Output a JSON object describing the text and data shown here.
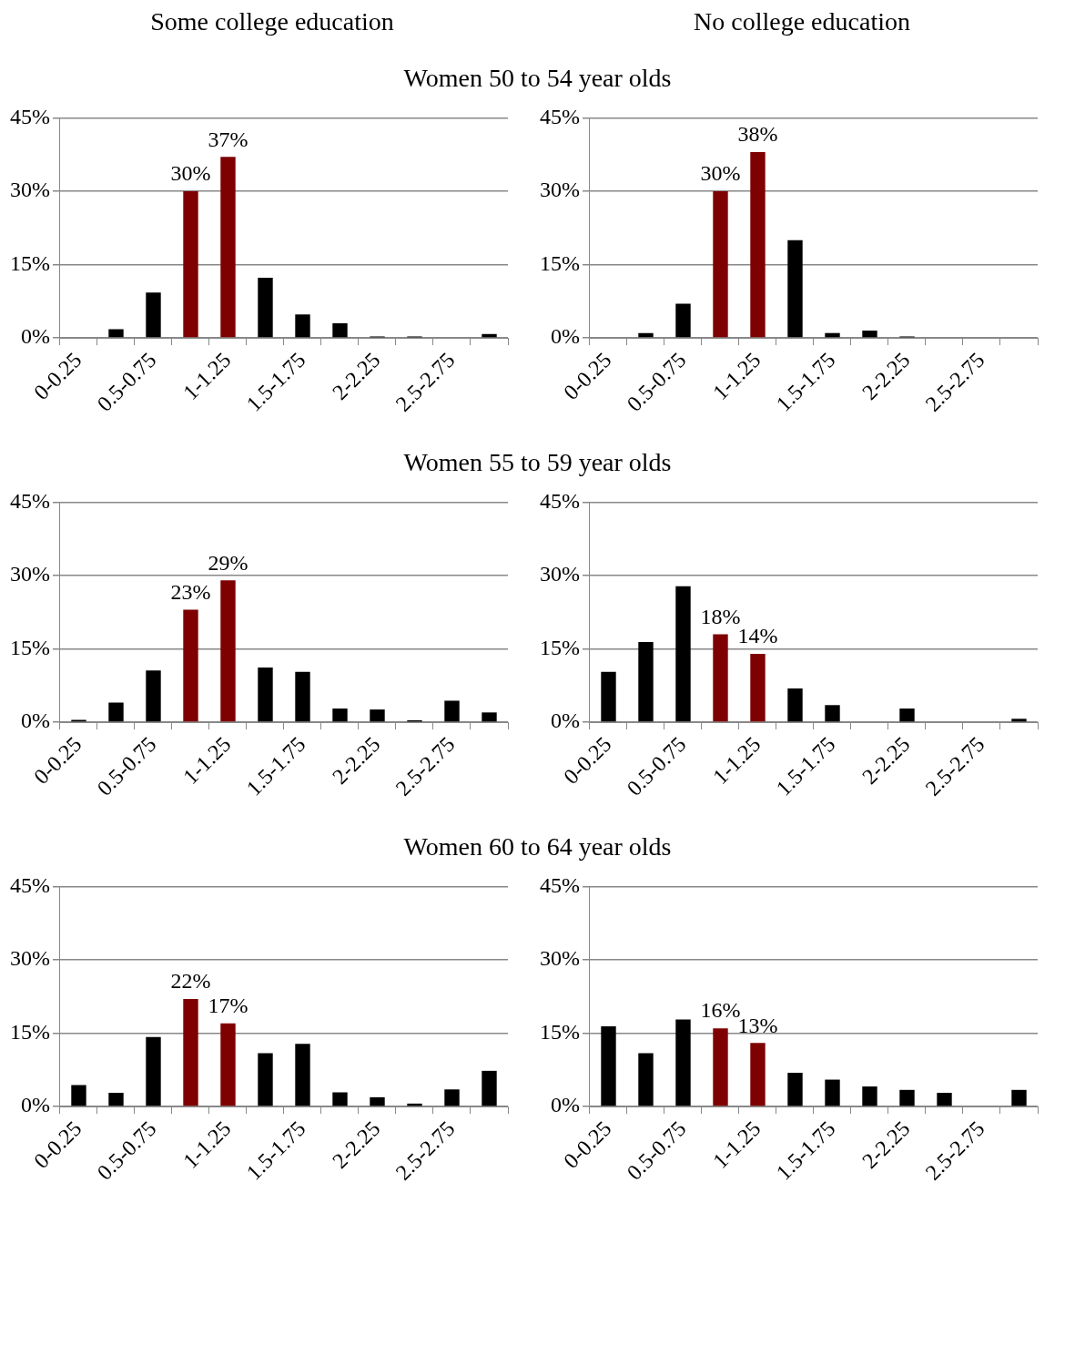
{
  "chart_data": [
    {
      "type": "bar",
      "title": "Some college education",
      "subtitle": "Women 50 to 54 year olds",
      "categories": [
        "0-0.25",
        null,
        "0.5-0.75",
        null,
        "1-1.25",
        null,
        "1.5-1.75",
        null,
        "2-2.25",
        null,
        "2.5-2.75",
        null
      ],
      "values": [
        0,
        1.8,
        9.3,
        30,
        37,
        12.3,
        4.8,
        3,
        0.3,
        0.3,
        0,
        0.8
      ],
      "colors": [
        "#000000",
        "#000000",
        "#000000",
        "#7f0000",
        "#7f0000",
        "#000000",
        "#000000",
        "#000000",
        "#000000",
        "#000000",
        "#000000",
        "#000000"
      ],
      "value_labels": [
        null,
        null,
        null,
        "30%",
        "37%",
        null,
        null,
        null,
        null,
        null,
        null,
        null
      ],
      "ylim": [
        0,
        45
      ],
      "yticks": [
        {
          "value": 0,
          "label": "0%"
        },
        {
          "value": 15,
          "label": "15%"
        },
        {
          "value": 30,
          "label": "30%"
        },
        {
          "value": 45,
          "label": "45%"
        }
      ],
      "grid": "y"
    },
    {
      "type": "bar",
      "title": "No college education",
      "categories": [
        "0-0.25",
        null,
        "0.5-0.75",
        null,
        "1-1.25",
        null,
        "1.5-1.75",
        null,
        "2-2.25",
        null,
        "2.5-2.75",
        null
      ],
      "values": [
        0,
        1,
        7,
        30,
        38,
        20,
        1,
        1.5,
        0.3,
        0,
        0,
        0
      ],
      "colors": [
        "#000000",
        "#000000",
        "#000000",
        "#7f0000",
        "#7f0000",
        "#000000",
        "#000000",
        "#000000",
        "#000000",
        "#000000",
        "#000000",
        "#000000"
      ],
      "value_labels": [
        null,
        null,
        null,
        "30%",
        "38%",
        null,
        null,
        null,
        null,
        null,
        null,
        null
      ],
      "ylim": [
        0,
        45
      ],
      "yticks": [
        {
          "value": 0,
          "label": "0%"
        },
        {
          "value": 15,
          "label": "15%"
        },
        {
          "value": 30,
          "label": "30%"
        },
        {
          "value": 45,
          "label": "45%"
        }
      ],
      "grid": "y"
    },
    {
      "type": "bar",
      "subtitle": "Women 55 to 59 year olds",
      "categories": [
        "0-0.25",
        null,
        "0.5-0.75",
        null,
        "1-1.25",
        null,
        "1.5-1.75",
        null,
        "2-2.25",
        null,
        "2.5-2.75",
        null
      ],
      "values": [
        0.5,
        4,
        10.6,
        23,
        29,
        11.2,
        10.3,
        2.8,
        2.6,
        0.4,
        4.4,
        2
      ],
      "colors": [
        "#000000",
        "#000000",
        "#000000",
        "#7f0000",
        "#7f0000",
        "#000000",
        "#000000",
        "#000000",
        "#000000",
        "#000000",
        "#000000",
        "#000000"
      ],
      "value_labels": [
        null,
        null,
        null,
        "23%",
        "29%",
        null,
        null,
        null,
        null,
        null,
        null,
        null
      ],
      "ylim": [
        0,
        45
      ],
      "yticks": [
        {
          "value": 0,
          "label": "0%"
        },
        {
          "value": 15,
          "label": "15%"
        },
        {
          "value": 30,
          "label": "30%"
        },
        {
          "value": 45,
          "label": "45%"
        }
      ],
      "grid": "y"
    },
    {
      "type": "bar",
      "categories": [
        "0-0.25",
        null,
        "0.5-0.75",
        null,
        "1-1.25",
        null,
        "1.5-1.75",
        null,
        "2-2.25",
        null,
        "2.5-2.75",
        null
      ],
      "values": [
        10.3,
        16.4,
        27.8,
        18,
        14,
        6.9,
        3.5,
        0,
        2.8,
        0,
        0,
        0.7
      ],
      "colors": [
        "#000000",
        "#000000",
        "#000000",
        "#7f0000",
        "#7f0000",
        "#000000",
        "#000000",
        "#000000",
        "#000000",
        "#000000",
        "#000000",
        "#000000"
      ],
      "value_labels": [
        null,
        null,
        null,
        "18%",
        "14%",
        null,
        null,
        null,
        null,
        null,
        null,
        null
      ],
      "ylim": [
        0,
        45
      ],
      "yticks": [
        {
          "value": 0,
          "label": "0%"
        },
        {
          "value": 15,
          "label": "15%"
        },
        {
          "value": 30,
          "label": "30%"
        },
        {
          "value": 45,
          "label": "45%"
        }
      ],
      "grid": "y"
    },
    {
      "type": "bar",
      "subtitle": "Women 60 to 64 year olds",
      "categories": [
        "0-0.25",
        null,
        "0.5-0.75",
        null,
        "1-1.25",
        null,
        "1.5-1.75",
        null,
        "2-2.25",
        null,
        "2.5-2.75",
        null
      ],
      "values": [
        4.4,
        2.8,
        14.2,
        22,
        17,
        10.9,
        12.8,
        2.9,
        1.9,
        0.6,
        3.5,
        7.3
      ],
      "colors": [
        "#000000",
        "#000000",
        "#000000",
        "#7f0000",
        "#7f0000",
        "#000000",
        "#000000",
        "#000000",
        "#000000",
        "#000000",
        "#000000",
        "#000000"
      ],
      "value_labels": [
        null,
        null,
        null,
        "22%",
        "17%",
        null,
        null,
        null,
        null,
        null,
        null,
        null
      ],
      "ylim": [
        0,
        45
      ],
      "yticks": [
        {
          "value": 0,
          "label": "0%"
        },
        {
          "value": 15,
          "label": "15%"
        },
        {
          "value": 30,
          "label": "30%"
        },
        {
          "value": 45,
          "label": "45%"
        }
      ],
      "grid": "y"
    },
    {
      "type": "bar",
      "categories": [
        "0-0.25",
        null,
        "0.5-0.75",
        null,
        "1-1.25",
        null,
        "1.5-1.75",
        null,
        "2-2.25",
        null,
        "2.5-2.75",
        null
      ],
      "values": [
        16.4,
        10.9,
        17.8,
        16,
        13,
        6.9,
        5.5,
        4.1,
        3.4,
        2.8,
        0,
        3.4
      ],
      "colors": [
        "#000000",
        "#000000",
        "#000000",
        "#7f0000",
        "#7f0000",
        "#000000",
        "#000000",
        "#000000",
        "#000000",
        "#000000",
        "#000000",
        "#000000"
      ],
      "value_labels": [
        null,
        null,
        null,
        "16%",
        "13%",
        null,
        null,
        null,
        null,
        null,
        null,
        null
      ],
      "ylim": [
        0,
        45
      ],
      "yticks": [
        {
          "value": 0,
          "label": "0%"
        },
        {
          "value": 15,
          "label": "15%"
        },
        {
          "value": 30,
          "label": "30%"
        },
        {
          "value": 45,
          "label": "45%"
        }
      ],
      "grid": "y"
    }
  ]
}
